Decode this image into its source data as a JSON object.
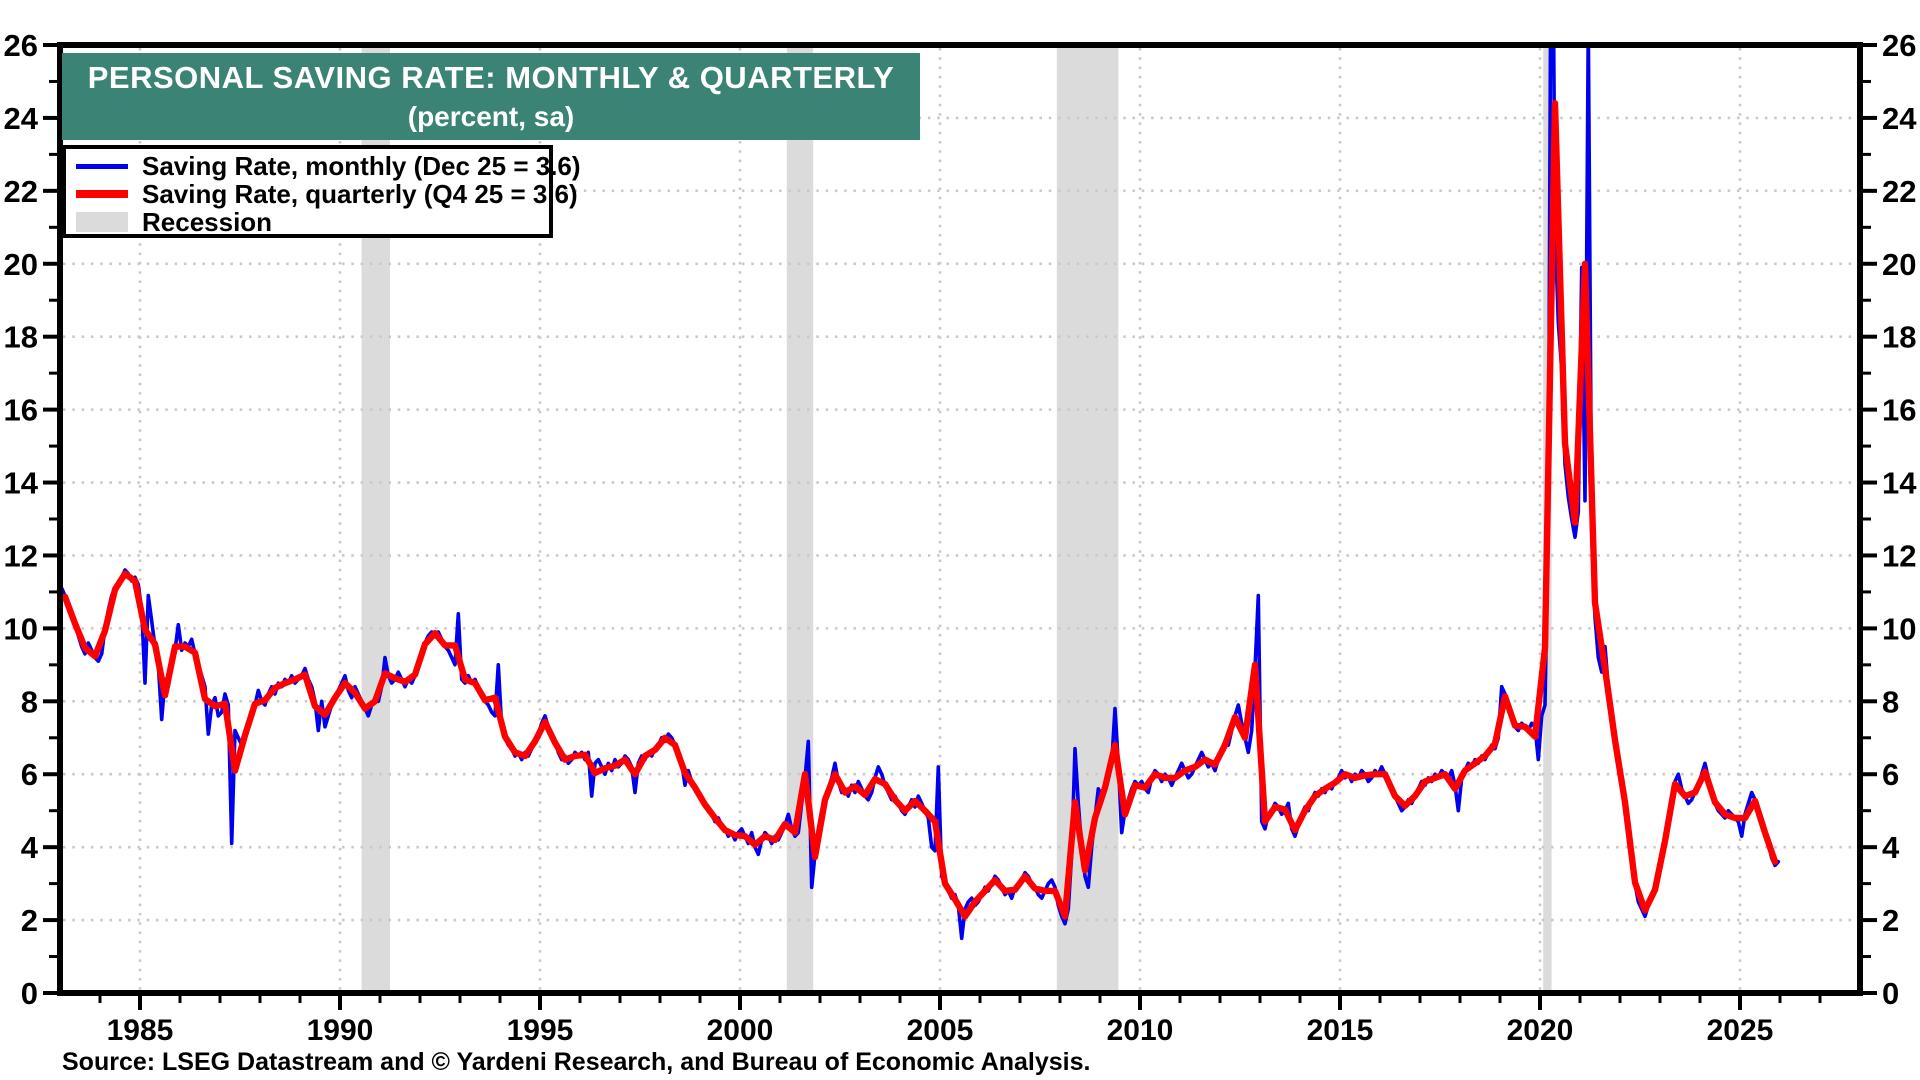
{
  "title": {
    "line1": "PERSONAL SAVING RATE: MONTHLY & QUARTERLY",
    "line2": "(percent, sa)"
  },
  "source": "Source: LSEG Datastream and © Yardeni Research, and Bureau of Economic Analysis.",
  "colors": {
    "title_bg": "#3A8375",
    "title_text": "#FFFFFF",
    "monthly_line": "#0000EE",
    "quarterly_line": "#FF0000",
    "recession_band": "#DBDBDB",
    "gridline": "#C9C9C9",
    "axis": "#000000"
  },
  "legend": {
    "items": [
      {
        "label": "Saving Rate, monthly (Dec 25 = 3.6)",
        "swatch": "line",
        "color": "#0000EE"
      },
      {
        "label": "Saving Rate, quarterly (Q4 25 = 3.6)",
        "swatch": "line",
        "color": "#FF0000"
      },
      {
        "label": "Recession",
        "swatch": "box",
        "color": "#DBDBDB"
      }
    ]
  },
  "chart_data": {
    "type": "line",
    "title": "PERSONAL SAVING RATE: MONTHLY & QUARTERLY",
    "subtitle": "(percent, sa)",
    "xlabel": "",
    "ylabel": "percent, seasonally adjusted",
    "xlim": [
      1983,
      2028
    ],
    "ylim": [
      0,
      26
    ],
    "grid": "dotted, horizontal every 2, vertical every 5 years",
    "legend_position": "top-left",
    "x_major_ticks": [
      1985,
      1990,
      1995,
      2000,
      2005,
      2010,
      2015,
      2020,
      2025
    ],
    "y_major_ticks": [
      0,
      2,
      4,
      6,
      8,
      10,
      12,
      14,
      16,
      18,
      20,
      22,
      24,
      26
    ],
    "x_minor_step_years": 1,
    "y_minor_step": 1,
    "recessions_year_ranges": [
      [
        1990.54,
        1991.25
      ],
      [
        2001.17,
        2001.83
      ],
      [
        2007.92,
        2009.46
      ],
      [
        2020.08,
        2020.29
      ]
    ],
    "series": [
      {
        "name": "Saving Rate, monthly (Dec 25 = 3.6)",
        "frequency": "monthly",
        "start": "1983-01",
        "end": "2025-12",
        "last_value": 3.6,
        "color": "#0000EE",
        "values": [
          11.1,
          10.9,
          10.6,
          10.4,
          10.2,
          9.8,
          9.5,
          9.3,
          9.6,
          9.4,
          9.2,
          9.1,
          9.3,
          10.0,
          10.5,
          10.9,
          11.1,
          11.2,
          11.4,
          11.6,
          11.5,
          11.3,
          11.4,
          11.2,
          10.5,
          8.5,
          10.9,
          10.2,
          9.5,
          9.0,
          7.5,
          8.6,
          8.4,
          9.0,
          9.4,
          10.1,
          9.4,
          9.6,
          9.5,
          9.7,
          9.3,
          9.0,
          8.7,
          8.4,
          7.1,
          7.9,
          8.1,
          7.6,
          7.7,
          8.2,
          7.9,
          4.1,
          7.2,
          7.0,
          6.8,
          7.1,
          7.3,
          7.6,
          7.9,
          8.3,
          8.0,
          7.9,
          8.2,
          8.4,
          8.2,
          8.5,
          8.4,
          8.6,
          8.5,
          8.7,
          8.5,
          8.6,
          8.7,
          8.9,
          8.6,
          8.4,
          8.0,
          7.2,
          8.0,
          7.3,
          7.6,
          7.9,
          8.1,
          8.3,
          8.5,
          8.7,
          8.3,
          8.1,
          8.4,
          8.2,
          8.0,
          7.8,
          7.6,
          7.9,
          8.1,
          8.0,
          8.4,
          9.2,
          8.7,
          8.5,
          8.6,
          8.8,
          8.6,
          8.4,
          8.6,
          8.5,
          8.7,
          9.0,
          9.3,
          9.6,
          9.8,
          9.9,
          9.8,
          9.9,
          9.7,
          9.5,
          9.4,
          9.2,
          9.0,
          10.4,
          8.6,
          8.5,
          8.7,
          8.5,
          8.6,
          8.4,
          8.2,
          8.0,
          7.9,
          7.7,
          7.6,
          9.0,
          7.3,
          7.0,
          6.8,
          6.7,
          6.5,
          6.6,
          6.4,
          6.6,
          6.5,
          6.7,
          6.9,
          7.1,
          7.4,
          7.6,
          7.3,
          7.1,
          6.9,
          6.6,
          6.4,
          6.5,
          6.3,
          6.4,
          6.6,
          6.5,
          6.6,
          6.4,
          6.6,
          5.4,
          6.3,
          6.4,
          6.2,
          6.0,
          6.3,
          6.1,
          6.4,
          6.2,
          6.3,
          6.5,
          6.4,
          6.2,
          5.5,
          6.3,
          6.5,
          6.4,
          6.6,
          6.5,
          6.7,
          6.8,
          7.0,
          6.9,
          7.1,
          7.0,
          6.8,
          6.6,
          6.3,
          5.7,
          6.1,
          5.8,
          5.6,
          5.5,
          5.3,
          5.2,
          5.0,
          4.9,
          4.7,
          4.8,
          4.6,
          4.5,
          4.3,
          4.4,
          4.2,
          4.4,
          4.5,
          4.3,
          4.1,
          4.4,
          4.0,
          3.8,
          4.2,
          4.4,
          4.3,
          4.1,
          4.3,
          4.2,
          4.4,
          4.6,
          4.9,
          4.5,
          4.3,
          4.4,
          5.2,
          5.9,
          6.9,
          2.9,
          3.8,
          4.5,
          5.0,
          5.3,
          5.6,
          5.9,
          6.3,
          5.8,
          5.5,
          5.6,
          5.4,
          5.7,
          5.5,
          5.8,
          5.6,
          5.4,
          5.3,
          5.5,
          5.9,
          6.2,
          6.0,
          5.7,
          5.5,
          5.3,
          5.4,
          5.2,
          5.0,
          4.9,
          5.1,
          5.3,
          5.1,
          5.4,
          5.2,
          5.0,
          4.8,
          4.0,
          3.9,
          6.2,
          3.2,
          3.0,
          2.8,
          2.6,
          2.7,
          2.4,
          1.5,
          2.3,
          2.5,
          2.6,
          2.4,
          2.5,
          2.7,
          2.9,
          2.8,
          3.0,
          3.2,
          3.1,
          2.9,
          2.7,
          2.8,
          2.6,
          2.9,
          3.0,
          3.1,
          3.3,
          3.2,
          3.0,
          2.9,
          2.7,
          2.6,
          2.8,
          3.0,
          3.1,
          2.9,
          2.4,
          2.1,
          1.9,
          2.3,
          3.8,
          6.7,
          5.2,
          4.0,
          3.2,
          2.9,
          4.0,
          4.8,
          5.6,
          5.4,
          5.6,
          5.9,
          6.3,
          7.8,
          6.3,
          4.4,
          5.0,
          5.3,
          5.6,
          5.8,
          5.7,
          5.8,
          5.6,
          5.5,
          5.9,
          6.1,
          6.0,
          5.8,
          6.0,
          5.9,
          5.7,
          5.9,
          6.1,
          6.3,
          6.1,
          5.9,
          6.0,
          6.2,
          6.4,
          6.6,
          6.4,
          6.2,
          6.3,
          6.1,
          6.4,
          6.7,
          6.9,
          6.8,
          7.2,
          7.6,
          7.9,
          7.4,
          7.0,
          6.6,
          7.2,
          8.9,
          10.9,
          4.7,
          4.5,
          4.9,
          5.0,
          5.2,
          5.1,
          4.9,
          5.0,
          5.2,
          4.5,
          4.3,
          4.6,
          4.9,
          5.1,
          5.0,
          5.3,
          5.5,
          5.4,
          5.6,
          5.5,
          5.7,
          5.6,
          5.8,
          5.9,
          6.1,
          5.9,
          6.0,
          5.8,
          6.0,
          5.9,
          6.1,
          6.0,
          5.8,
          5.9,
          6.1,
          6.0,
          6.2,
          6.0,
          5.8,
          5.6,
          5.4,
          5.2,
          5.0,
          5.1,
          5.3,
          5.2,
          5.4,
          5.6,
          5.8,
          5.7,
          5.9,
          5.8,
          6.0,
          5.9,
          6.1,
          6.0,
          5.9,
          6.1,
          5.7,
          5.0,
          5.9,
          6.1,
          6.3,
          6.2,
          6.4,
          6.3,
          6.5,
          6.4,
          6.6,
          6.8,
          6.7,
          7.0,
          8.4,
          8.2,
          7.8,
          7.5,
          7.3,
          7.2,
          7.4,
          7.3,
          7.2,
          7.4,
          7.3,
          6.4,
          7.6,
          7.9,
          12.9,
          33.8,
          21.0,
          18.4,
          17.1,
          14.5,
          13.6,
          13.0,
          12.5,
          13.2,
          19.9,
          13.5,
          26.6,
          12.6,
          10.3,
          9.2,
          8.8,
          9.5,
          8.4,
          7.5,
          6.9,
          6.4,
          5.8,
          5.2,
          4.7,
          3.6,
          3.0,
          2.5,
          2.3,
          2.1,
          2.4,
          2.6,
          2.8,
          3.1,
          3.6,
          4.1,
          4.8,
          5.4,
          5.8,
          6.0,
          5.6,
          5.4,
          5.2,
          5.3,
          5.5,
          5.7,
          6.0,
          6.3,
          5.9,
          5.5,
          5.2,
          5.0,
          4.9,
          4.8,
          5.0,
          4.9,
          4.8,
          4.7,
          4.3,
          4.9,
          5.2,
          5.5,
          5.3,
          5.0,
          4.7,
          4.4,
          4.1,
          3.7,
          3.5,
          3.6
        ]
      },
      {
        "name": "Saving Rate, quarterly (Q4 25 = 3.6)",
        "frequency": "quarterly",
        "start": "1983-Q1",
        "end": "2025-Q4",
        "last_value": 3.6,
        "color": "#FF0000",
        "values_derivation": "3-month average of the monthly series above (Q2 2020 = 24.4, Q1 2021 = 20.0, Q4 2025 = 3.6)"
      }
    ]
  }
}
